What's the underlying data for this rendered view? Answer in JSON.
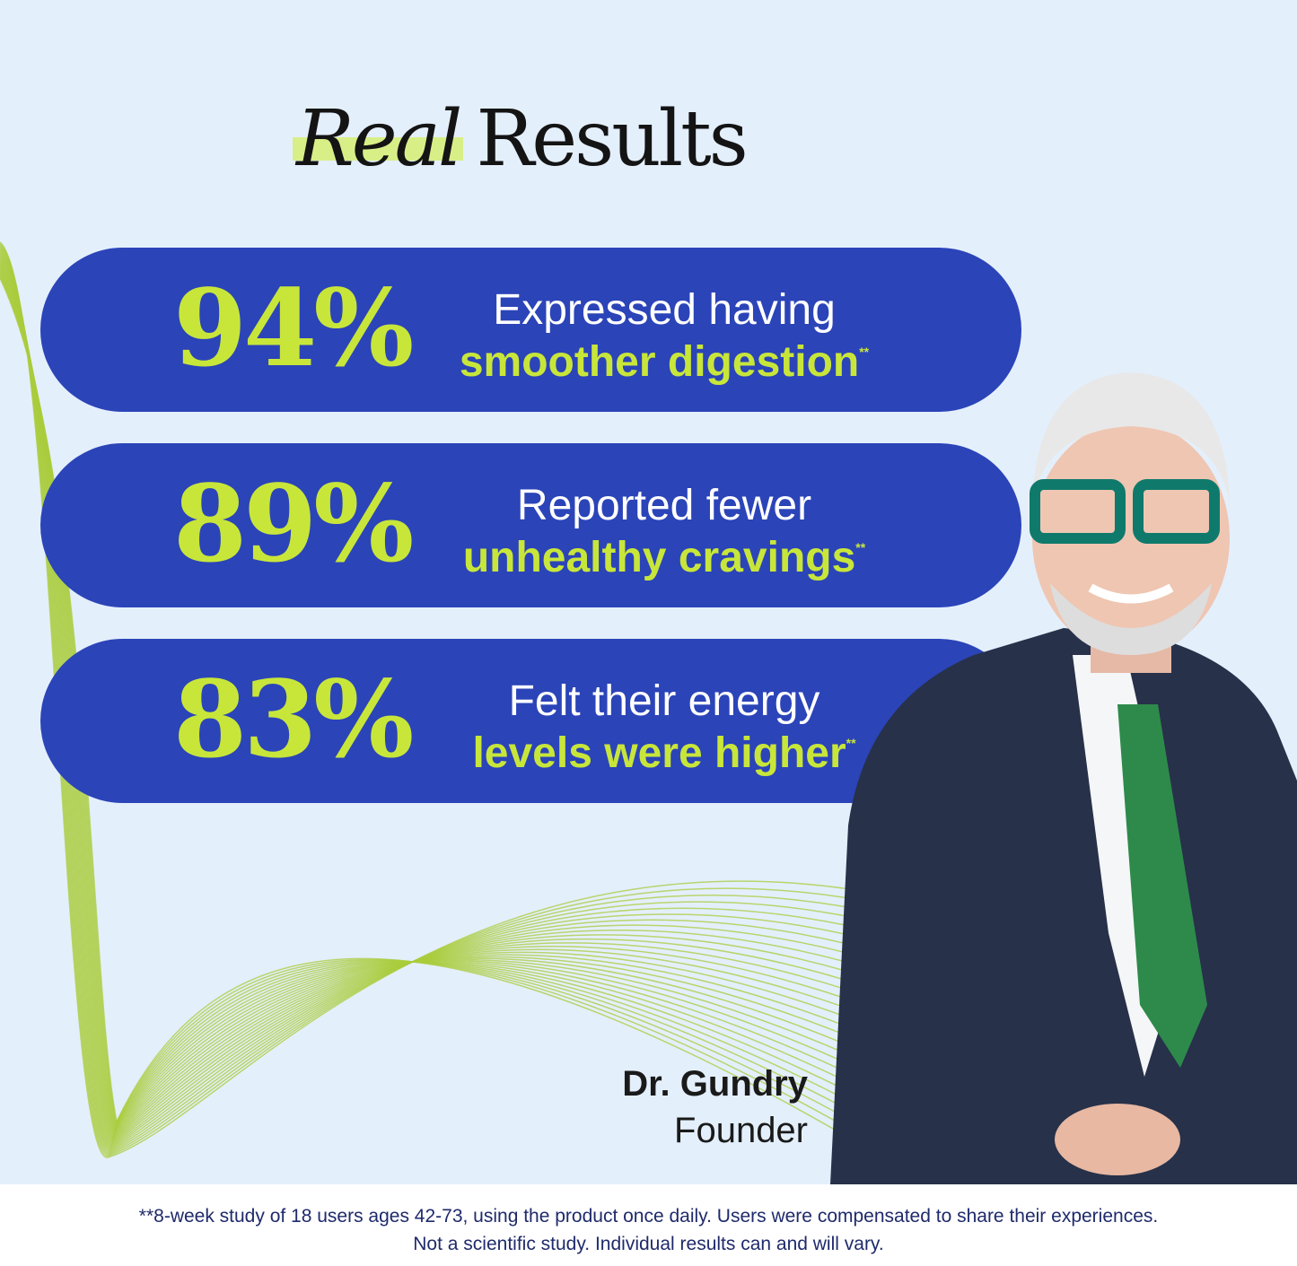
{
  "heading": {
    "italic": "Real",
    "regular": "Results"
  },
  "stats": [
    {
      "percent": "94%",
      "line1": "Expressed having",
      "line2": "smoother digestion",
      "mark": "**"
    },
    {
      "percent": "89%",
      "line1": "Reported fewer",
      "line2": "unhealthy cravings",
      "mark": "**"
    },
    {
      "percent": "83%",
      "line1": "Felt their energy",
      "line2": "levels were higher",
      "mark": "**"
    }
  ],
  "person": {
    "name": "Dr. Gundry",
    "role": "Founder"
  },
  "footer": {
    "line1": "**8-week study of 18 users ages 42-73, using the product once daily. Users were compensated to share their experiences.",
    "line2": "Not a scientific study. Individual results can and will vary."
  },
  "colors": {
    "background": "#e4effc",
    "pill": "#2b44b8",
    "accent": "#c8e63a"
  }
}
